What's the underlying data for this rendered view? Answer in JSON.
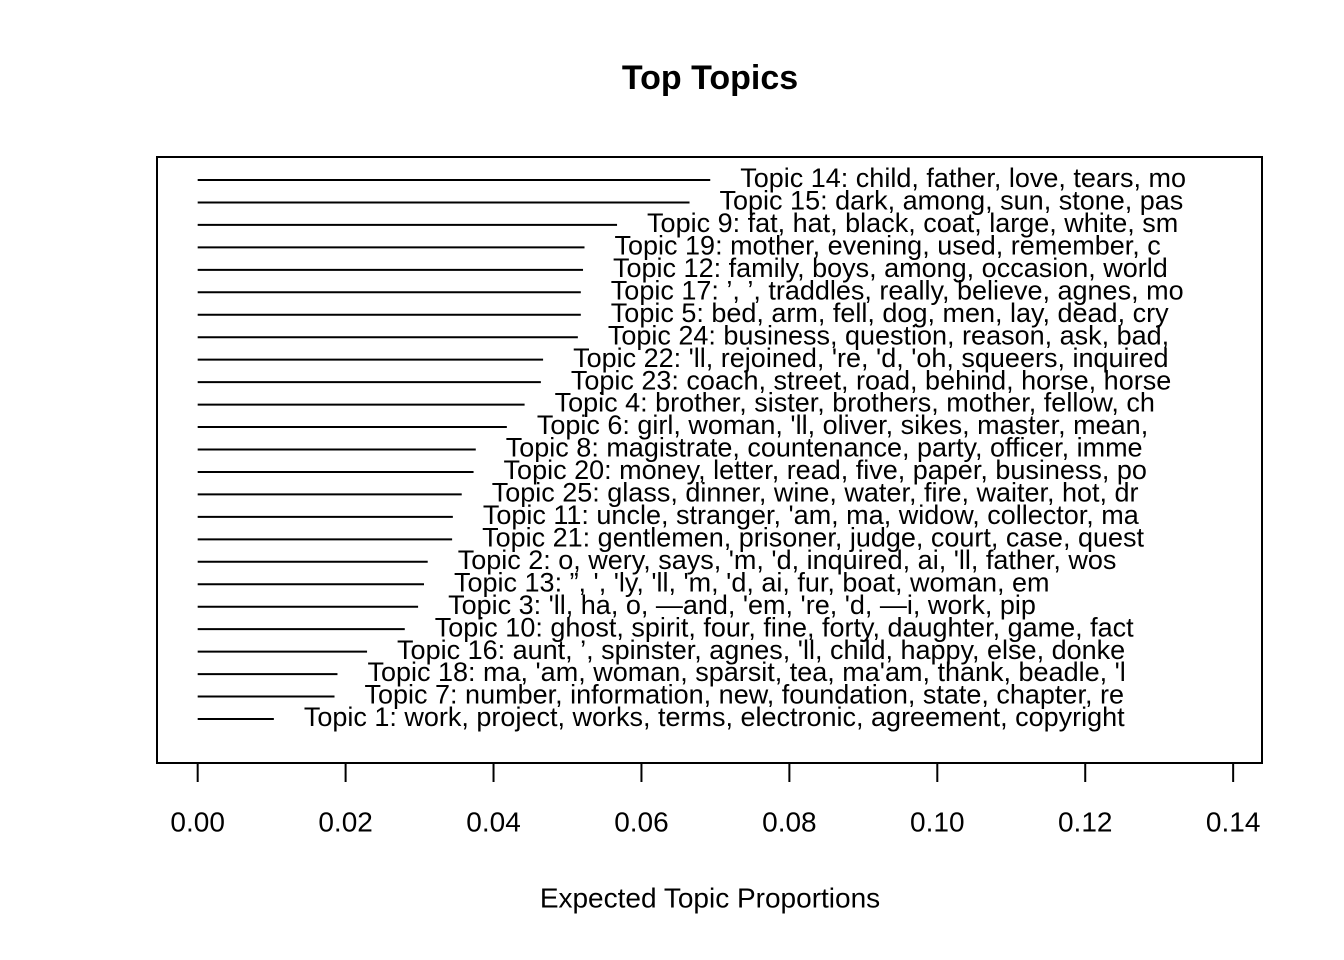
{
  "chart_data": {
    "type": "bar",
    "title": "Top Topics",
    "xlabel": "Expected Topic Proportions",
    "categories": [
      "Topic 14: child, father, love, tears, mo",
      "Topic 15: dark, among, sun, stone, pas",
      "Topic 9: fat, hat, black, coat, large, white, sm",
      "Topic 19: mother, evening, used, remember, c",
      "Topic 12: family, boys, among, occasion, world",
      "Topic 17: ’, ’, traddles, really, believe, agnes, mo",
      "Topic 5: bed, arm, fell, dog, men, lay, dead, cry",
      "Topic 24: business, question, reason, ask, bad,",
      "Topic 22: 'll, rejoined, 're, 'd, 'oh, squeers, inquired",
      "Topic 23: coach, street, road, behind, horse, horse",
      "Topic 4: brother, sister, brothers, mother, fellow, ch",
      "Topic 6: girl, woman, 'll, oliver, sikes, master, mean,",
      "Topic 8: magistrate, countenance, party, officer, imme",
      "Topic 20: money, letter, read, five, paper, business, po",
      "Topic 25: glass, dinner, wine, water, fire, waiter, hot, dr",
      "Topic 11: uncle, stranger, 'am, ma, widow, collector, ma",
      "Topic 21: gentlemen, prisoner, judge, court, case, quest",
      "Topic 2: o, wery, says, 'm, 'd, inquired, ai, 'll, father, wos",
      "Topic 13: ”, ', 'ly, 'll, 'm, 'd, ai, fur, boat, woman, em",
      "Topic 3: 'll, ha, o, —and, 'em, 're, 'd, —i, work, pip",
      "Topic 10: ghost, spirit, four, fine, forty, daughter, game, fact",
      "Topic 16: aunt, ’, spinster, agnes, 'll, child, happy, else, donke",
      "Topic 18: ma, 'am, woman, sparsit, tea, ma'am, thank, beadle, 'l",
      "Topic 7: number, information, new, foundation, state, chapter, re",
      "Topic 1: work, project, works, terms, electronic, agreement, copyright"
    ],
    "values": [
      0.0693,
      0.0665,
      0.0567,
      0.0523,
      0.0521,
      0.0518,
      0.0518,
      0.0514,
      0.0467,
      0.0464,
      0.0442,
      0.0418,
      0.0376,
      0.0373,
      0.0357,
      0.0345,
      0.0344,
      0.0311,
      0.0306,
      0.0298,
      0.028,
      0.0229,
      0.0189,
      0.0185,
      0.0103
    ],
    "color": "#000000",
    "xlim": [
      -0.0055,
      0.1439
    ],
    "xticks": [
      {
        "value": 0,
        "label": "0.00"
      },
      {
        "value": 0.02,
        "label": "0.02"
      },
      {
        "value": 0.04,
        "label": "0.04"
      },
      {
        "value": 0.06,
        "label": "0.06"
      },
      {
        "value": 0.08,
        "label": "0.08"
      },
      {
        "value": 0.1,
        "label": "0.10"
      },
      {
        "value": 0.12,
        "label": "0.12"
      },
      {
        "value": 0.14,
        "label": "0.14"
      }
    ]
  }
}
